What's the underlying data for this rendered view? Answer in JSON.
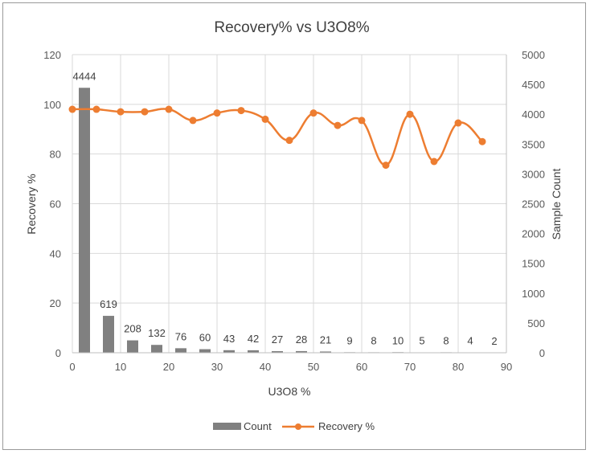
{
  "chart_data": {
    "type": "combo",
    "title": "Recovery% vs U3O8%",
    "xlabel": "U3O8 %",
    "ylabel_left": "Recovery %",
    "ylabel_right": "Sample Count",
    "x_ticks": [
      0,
      10,
      20,
      30,
      40,
      50,
      60,
      70,
      80,
      90
    ],
    "xlim": [
      0,
      90
    ],
    "ylim_left": [
      0,
      120
    ],
    "y_ticks_left": [
      0,
      20,
      40,
      60,
      80,
      100,
      120
    ],
    "ylim_right": [
      0,
      5000
    ],
    "y_ticks_right": [
      0,
      500,
      1000,
      1500,
      2000,
      2500,
      3000,
      3500,
      4000,
      4500,
      5000
    ],
    "grid": true,
    "legend_position": "bottom",
    "series": [
      {
        "name": "Count",
        "chart": "bar",
        "axis": "right",
        "color": "#808080",
        "x": [
          2.5,
          7.5,
          12.5,
          17.5,
          22.5,
          27.5,
          32.5,
          37.5,
          42.5,
          47.5,
          52.5,
          57.5,
          62.5,
          67.5,
          72.5,
          77.5,
          82.5,
          87.5
        ],
        "values": [
          4444,
          619,
          208,
          132,
          76,
          60,
          43,
          42,
          27,
          28,
          21,
          9,
          8,
          10,
          5,
          8,
          4,
          2
        ],
        "data_labels": [
          "4444",
          "619",
          "208",
          "132",
          "76",
          "60",
          "43",
          "42",
          "27",
          "28",
          "21",
          "9",
          "8",
          "10",
          "5",
          "8",
          "4",
          "2"
        ]
      },
      {
        "name": "Recovery %",
        "chart": "line",
        "axis": "left",
        "color": "#ED7D31",
        "x": [
          0,
          5,
          10,
          15,
          20,
          25,
          30,
          35,
          40,
          45,
          50,
          55,
          60,
          65,
          70,
          75,
          80,
          85
        ],
        "values": [
          98,
          98,
          97,
          97,
          98,
          93.5,
          96.5,
          97.5,
          94,
          85.5,
          96.5,
          91.5,
          93.5,
          75.5,
          96,
          77,
          92.5,
          85
        ]
      }
    ]
  }
}
